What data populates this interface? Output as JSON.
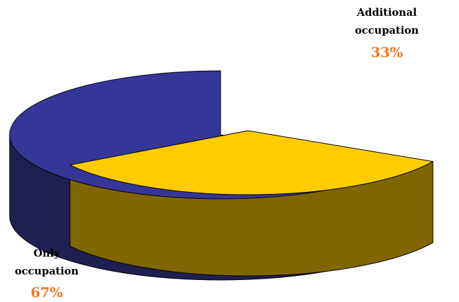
{
  "chart_data": {
    "type": "pie",
    "style": "3d-exploded",
    "slices": [
      {
        "label_lines": [
          "Only",
          "occupation"
        ],
        "percent_label": "67%",
        "value": 67,
        "color": "#363699",
        "side_color": "#1F1F50"
      },
      {
        "label_lines": [
          "Additional",
          "occupation"
        ],
        "percent_label": "33%",
        "value": 33,
        "color": "#FFCC00",
        "side_color": "#806600"
      }
    ],
    "percent_color": "#F07820",
    "legend": "none"
  }
}
